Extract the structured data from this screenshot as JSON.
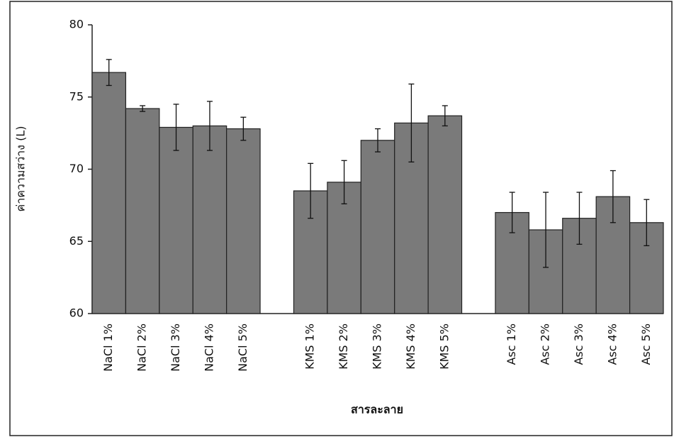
{
  "chart_data": {
    "type": "bar",
    "y_label": "ค่าความสว่าง (L)",
    "x_label": "สารละลาย",
    "categories": [
      "NaCl 1%",
      "NaCl 2%",
      "NaCl 3%",
      "NaCl 4%",
      "NaCl 5%",
      null,
      "KMS 1%",
      "KMS 2%",
      "KMS 3%",
      "KMS 4%",
      "KMS 5%",
      null,
      "Asc 1%",
      "Asc 2%",
      "Asc 3%",
      "Asc 4%",
      "Asc 5%"
    ],
    "values": [
      76.7,
      74.2,
      72.9,
      73.0,
      72.8,
      null,
      68.5,
      69.1,
      72.0,
      73.2,
      73.7,
      null,
      67.0,
      65.8,
      66.6,
      68.1,
      66.3
    ],
    "errors": [
      0.9,
      0.2,
      1.6,
      1.7,
      0.8,
      null,
      1.9,
      1.5,
      0.8,
      2.7,
      0.7,
      null,
      1.4,
      2.6,
      1.8,
      1.8,
      1.6
    ],
    "color": "#7a7a7a",
    "ylim": [
      60,
      80
    ],
    "yticks": [
      60,
      65,
      70,
      75,
      80
    ]
  }
}
